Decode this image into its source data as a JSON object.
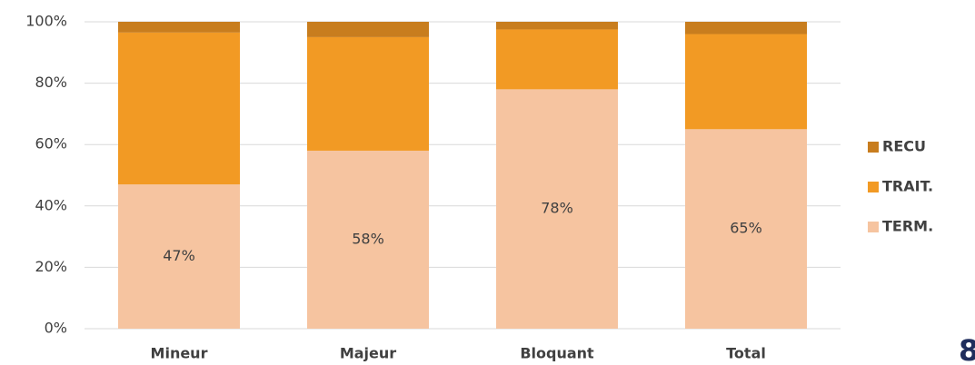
{
  "chart_data": {
    "type": "stacked_bar",
    "categories": [
      "Mineur",
      "Majeur",
      "Bloquant",
      "Total"
    ],
    "series": [
      {
        "name": "TERM.",
        "color": "#f6c4a0",
        "values": [
          47,
          58,
          78,
          65
        ],
        "value_labels": [
          "47%",
          "58%",
          "78%",
          "65%"
        ]
      },
      {
        "name": "TRAIT.",
        "color": "#f29a24",
        "values": [
          49.5,
          37,
          19.5,
          31
        ]
      },
      {
        "name": "RECU",
        "color": "#c87d1e",
        "values": [
          3.5,
          5,
          2.5,
          4
        ]
      }
    ],
    "ylim": [
      0,
      100
    ],
    "yticks": [
      {
        "value": 0,
        "label": "0%"
      },
      {
        "value": 20,
        "label": "20%"
      },
      {
        "value": 40,
        "label": "40%"
      },
      {
        "value": 60,
        "label": "60%"
      },
      {
        "value": 80,
        "label": "80%"
      },
      {
        "value": 100,
        "label": "100%"
      }
    ],
    "grid": true,
    "legend": "right"
  },
  "page_number": "8"
}
